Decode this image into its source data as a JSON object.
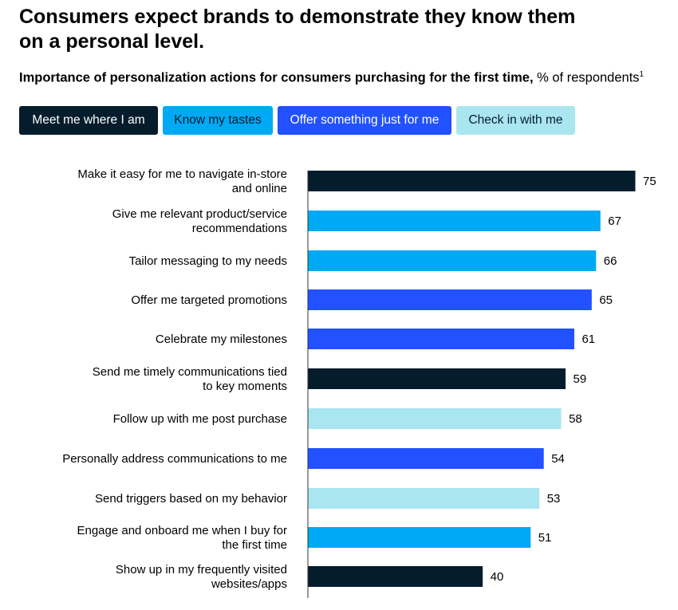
{
  "title_line1": "Consumers expect brands to demonstrate they know them",
  "title_line2": "on a personal level.",
  "subtitle_bold": "Importance of personalization actions for consumers purchasing for the first time,",
  "subtitle_rest": " % of respondents",
  "subtitle_footnote": "1",
  "colors": {
    "meet": "#051c2c",
    "know": "#00a9f4",
    "offer": "#2251ff",
    "check": "#aae6f0"
  },
  "legend": [
    {
      "label": "Meet me where I am",
      "key": "meet",
      "text_color": "#ffffff"
    },
    {
      "label": "Know my tastes",
      "key": "know",
      "text_color": "#051c2c"
    },
    {
      "label": "Offer something just for me",
      "key": "offer",
      "text_color": "#ffffff"
    },
    {
      "label": "Check in with me",
      "key": "check",
      "text_color": "#051c2c"
    }
  ],
  "chart_data": {
    "type": "bar",
    "orientation": "horizontal",
    "categories": [
      [
        "Make it easy for me to navigate in-store",
        "and online"
      ],
      [
        "Give me relevant product/service",
        "recommendations"
      ],
      [
        "Tailor messaging to my needs"
      ],
      [
        "Offer me targeted promotions"
      ],
      [
        "Celebrate my milestones"
      ],
      [
        "Send me timely communications tied",
        "to key moments"
      ],
      [
        "Follow up with me post purchase"
      ],
      [
        "Personally address communications to me"
      ],
      [
        "Send triggers based on my behavior"
      ],
      [
        "Engage and onboard me when I buy for",
        "the first time"
      ],
      [
        "Show up in my frequently visited",
        "websites/apps"
      ]
    ],
    "values": [
      75,
      67,
      66,
      65,
      61,
      59,
      58,
      54,
      53,
      51,
      40
    ],
    "groups": [
      "meet",
      "know",
      "know",
      "offer",
      "offer",
      "meet",
      "check",
      "offer",
      "check",
      "know",
      "meet"
    ],
    "group_labels": {
      "meet": "Meet me where I am",
      "know": "Know my tastes",
      "offer": "Offer something just for me",
      "check": "Check in with me"
    },
    "xlim": [
      0,
      75
    ],
    "grid": false,
    "legend_position": "top"
  }
}
